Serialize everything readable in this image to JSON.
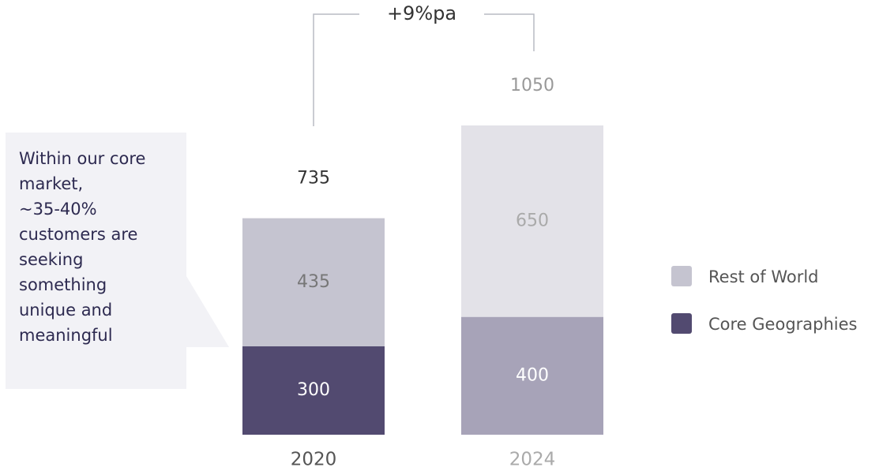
{
  "chart_data": {
    "type": "stacked-bar",
    "categories": [
      "2020",
      "2024"
    ],
    "series": [
      {
        "name": "Core Geographies",
        "color": "#524a70",
        "colors": [
          "#524a70",
          "#a7a3b8"
        ],
        "values": [
          300,
          400
        ]
      },
      {
        "name": "Rest of World",
        "color": "#c5c4d0",
        "colors": [
          "#c5c4d0",
          "#e3e2e8"
        ],
        "values": [
          435,
          650
        ]
      }
    ],
    "totals": [
      735,
      1050
    ],
    "ylim": [
      0,
      1050
    ],
    "annotation": "+9%pa",
    "callout": [
      "Within our core",
      "market,",
      "~35-40%",
      "customers are",
      "seeking",
      "something",
      "unique and",
      "meaningful"
    ]
  }
}
